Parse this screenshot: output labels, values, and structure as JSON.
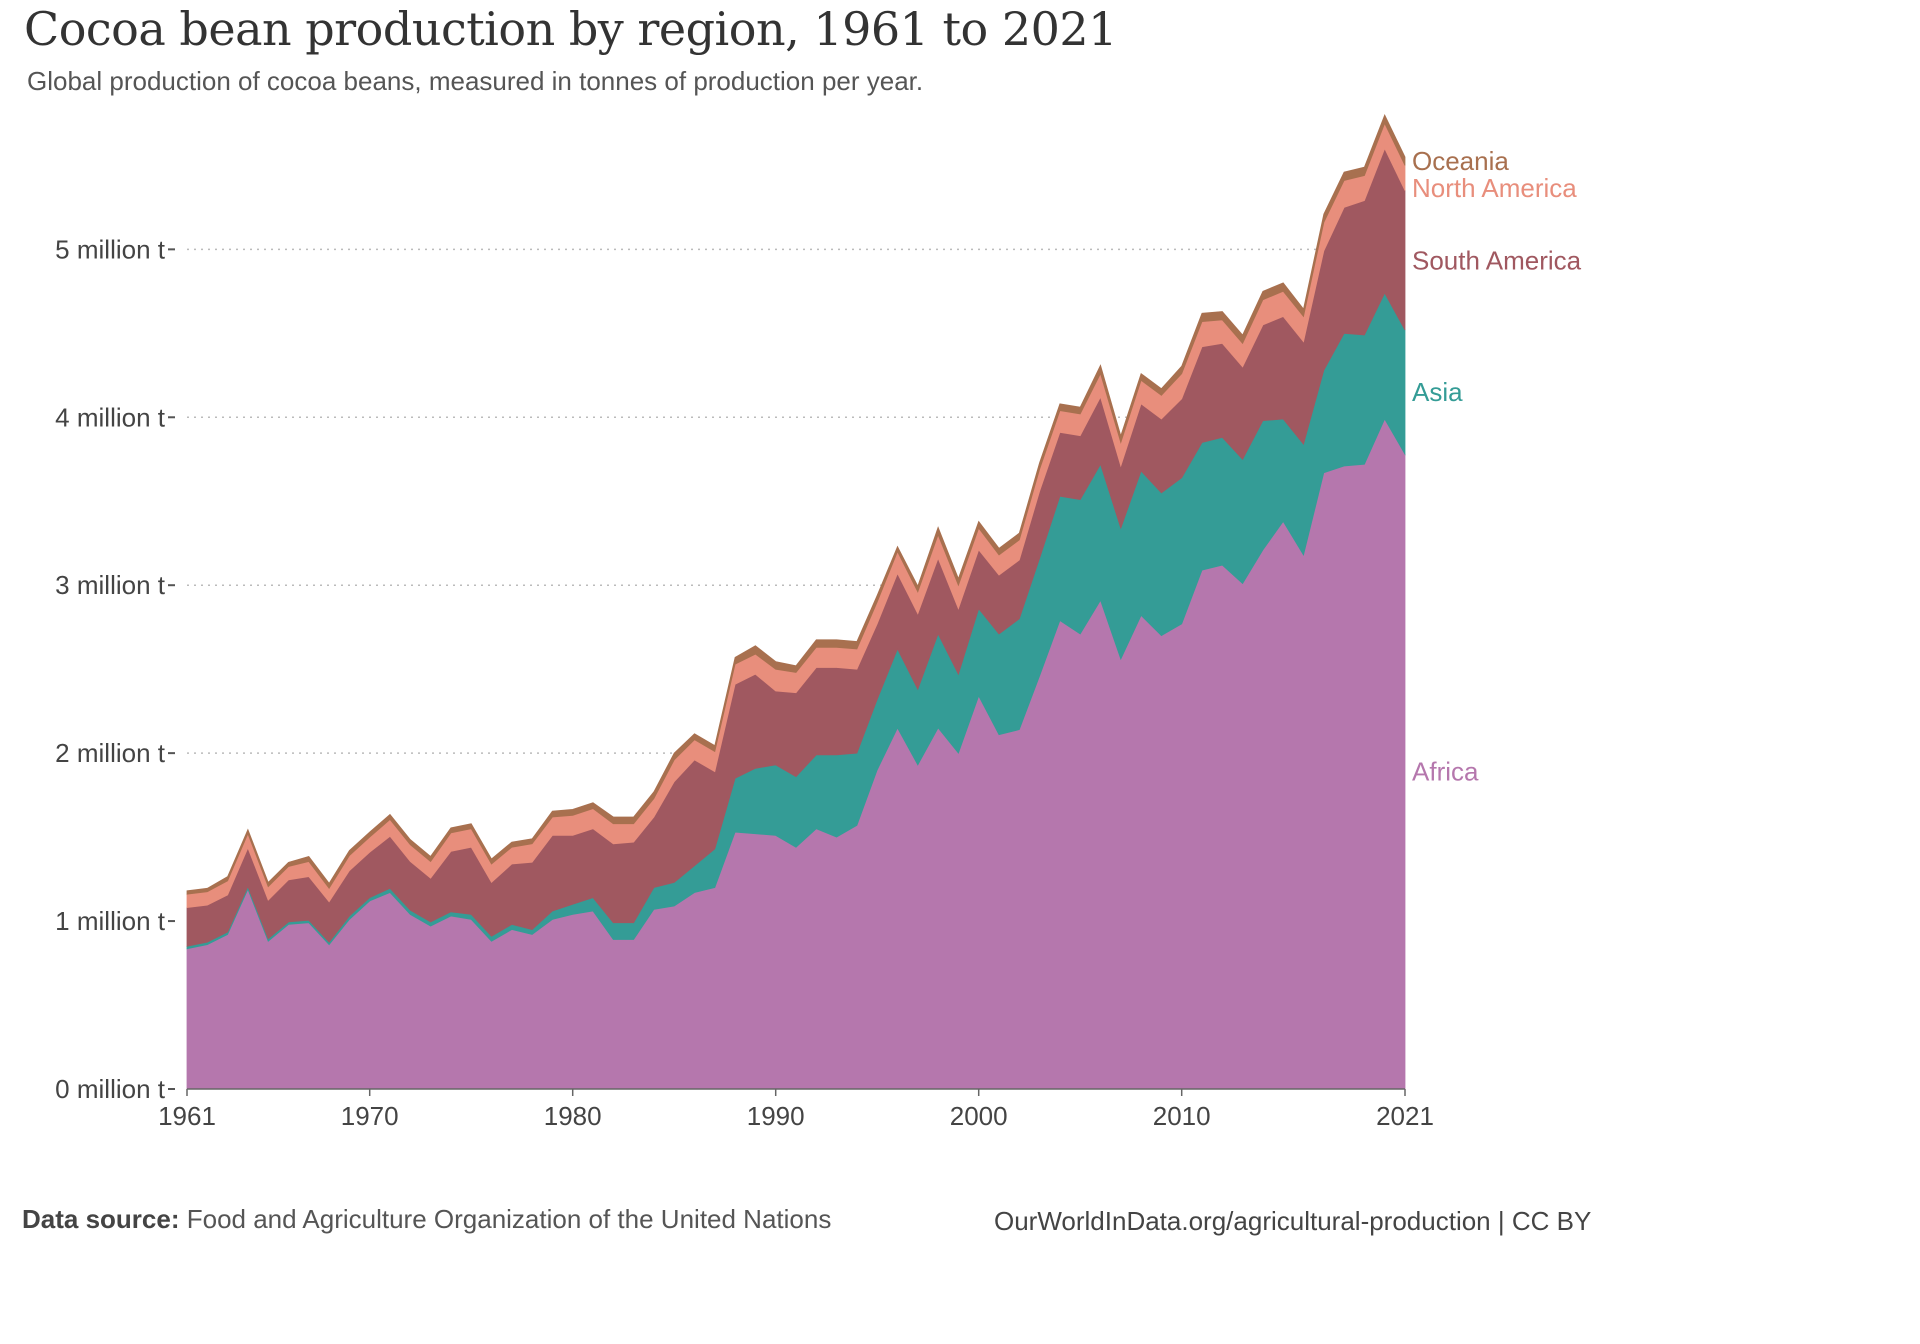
{
  "title": "Cocoa bean production by region, 1961 to 2021",
  "subtitle": "Global production of cocoa beans, measured in tonnes of production per year.",
  "footer": {
    "source_label": "Data source:",
    "source_text": "Food and Agriculture Organization of the United Nations",
    "attribution": "OurWorldInData.org/agricultural-production | CC BY"
  },
  "chart_data": {
    "type": "area",
    "stacked": true,
    "title": "Cocoa bean production by region, 1961 to 2021",
    "xlabel": "",
    "ylabel": "",
    "ylim": [
      0,
      5800000
    ],
    "xlim": [
      1961,
      2021
    ],
    "x_ticks": [
      1961,
      1970,
      1980,
      1990,
      2000,
      2010,
      2021
    ],
    "y_ticks": [
      0,
      1000000,
      2000000,
      3000000,
      4000000,
      5000000
    ],
    "y_tick_labels": [
      "0 million t",
      "1 million t",
      "2 million t",
      "3 million t",
      "4 million t",
      "5 million t"
    ],
    "grid": "horizontal dotted",
    "legend": "inline labels at right end",
    "x": [
      1961,
      1962,
      1963,
      1964,
      1965,
      1966,
      1967,
      1968,
      1969,
      1970,
      1971,
      1972,
      1973,
      1974,
      1975,
      1976,
      1977,
      1978,
      1979,
      1980,
      1981,
      1982,
      1983,
      1984,
      1985,
      1986,
      1987,
      1988,
      1989,
      1990,
      1991,
      1992,
      1993,
      1994,
      1995,
      1996,
      1997,
      1998,
      1999,
      2000,
      2001,
      2002,
      2003,
      2004,
      2005,
      2006,
      2007,
      2008,
      2009,
      2010,
      2011,
      2012,
      2013,
      2014,
      2015,
      2016,
      2017,
      2018,
      2019,
      2020,
      2021
    ],
    "series": [
      {
        "name": "Africa",
        "color": "#b577ad",
        "values": [
          835000,
          860000,
          920000,
          1190000,
          880000,
          980000,
          990000,
          860000,
          1010000,
          1120000,
          1170000,
          1040000,
          970000,
          1030000,
          1010000,
          880000,
          950000,
          920000,
          1010000,
          1040000,
          1060000,
          890000,
          890000,
          1070000,
          1090000,
          1170000,
          1200000,
          1530000,
          1520000,
          1510000,
          1440000,
          1550000,
          1500000,
          1570000,
          1900000,
          2150000,
          1930000,
          2150000,
          2000000,
          2340000,
          2110000,
          2140000,
          2460000,
          2790000,
          2710000,
          2910000,
          2560000,
          2820000,
          2700000,
          2770000,
          3090000,
          3120000,
          3010000,
          3210000,
          3380000,
          3180000,
          3670000,
          3710000,
          3720000,
          3990000,
          3780000
        ]
      },
      {
        "name": "Asia",
        "color": "#349c96",
        "values": [
          15000,
          15000,
          15000,
          15000,
          15000,
          15000,
          15000,
          15000,
          20000,
          20000,
          25000,
          25000,
          25000,
          25000,
          30000,
          30000,
          30000,
          30000,
          50000,
          60000,
          80000,
          100000,
          100000,
          130000,
          140000,
          160000,
          230000,
          320000,
          390000,
          420000,
          420000,
          440000,
          490000,
          430000,
          420000,
          470000,
          450000,
          560000,
          470000,
          520000,
          600000,
          660000,
          700000,
          740000,
          800000,
          810000,
          780000,
          860000,
          850000,
          870000,
          760000,
          760000,
          740000,
          770000,
          610000,
          660000,
          610000,
          790000,
          770000,
          750000,
          740000
        ]
      },
      {
        "name": "South America",
        "color": "#a05860",
        "values": [
          230000,
          220000,
          220000,
          230000,
          230000,
          250000,
          260000,
          240000,
          270000,
          270000,
          310000,
          290000,
          260000,
          360000,
          400000,
          320000,
          360000,
          400000,
          450000,
          410000,
          410000,
          470000,
          480000,
          420000,
          600000,
          630000,
          460000,
          560000,
          560000,
          440000,
          500000,
          520000,
          520000,
          500000,
          450000,
          450000,
          450000,
          450000,
          390000,
          350000,
          350000,
          350000,
          400000,
          380000,
          380000,
          400000,
          370000,
          400000,
          440000,
          470000,
          570000,
          560000,
          550000,
          570000,
          610000,
          610000,
          710000,
          750000,
          800000,
          860000,
          830000
        ]
      },
      {
        "name": "North America",
        "color": "#e88e7c",
        "values": [
          80000,
          80000,
          85000,
          85000,
          80000,
          80000,
          90000,
          80000,
          90000,
          90000,
          100000,
          100000,
          100000,
          110000,
          110000,
          110000,
          100000,
          110000,
          110000,
          120000,
          120000,
          120000,
          110000,
          110000,
          130000,
          120000,
          120000,
          120000,
          120000,
          130000,
          120000,
          120000,
          120000,
          120000,
          130000,
          130000,
          130000,
          140000,
          140000,
          130000,
          120000,
          120000,
          130000,
          130000,
          130000,
          140000,
          140000,
          140000,
          140000,
          150000,
          150000,
          140000,
          140000,
          150000,
          150000,
          150000,
          170000,
          160000,
          150000,
          150000,
          150000
        ]
      },
      {
        "name": "Oceania",
        "color": "#a8704f",
        "values": [
          20000,
          20000,
          25000,
          25000,
          25000,
          25000,
          30000,
          30000,
          30000,
          30000,
          30000,
          30000,
          30000,
          30000,
          30000,
          30000,
          30000,
          30000,
          35000,
          35000,
          35000,
          40000,
          40000,
          40000,
          40000,
          35000,
          35000,
          40000,
          50000,
          45000,
          40000,
          45000,
          45000,
          45000,
          40000,
          30000,
          35000,
          45000,
          40000,
          40000,
          40000,
          40000,
          40000,
          40000,
          40000,
          50000,
          40000,
          40000,
          40000,
          45000,
          50000,
          50000,
          50000,
          50000,
          50000,
          45000,
          50000,
          50000,
          50000,
          50000,
          50000
        ]
      }
    ]
  }
}
